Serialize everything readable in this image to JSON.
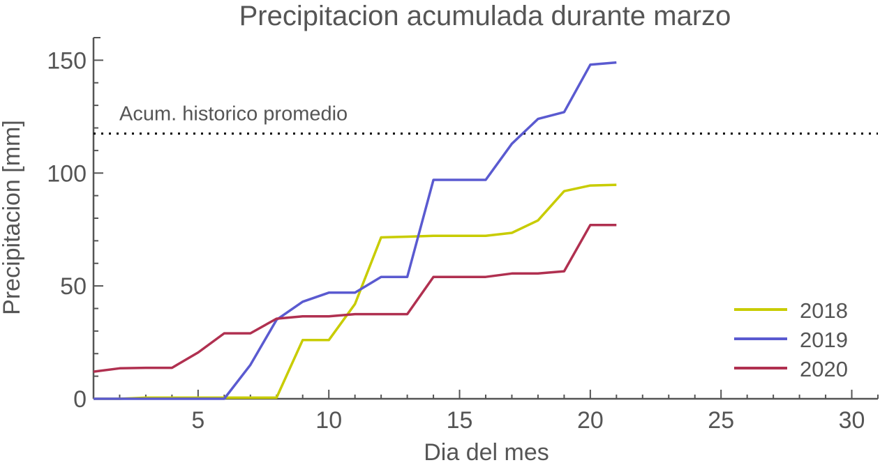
{
  "chart_data": {
    "type": "line",
    "title": "Precipitacion acumulada durante marzo",
    "xlabel": "Dia del mes",
    "ylabel": "Precipitacion [mm]",
    "xlim": [
      1,
      31
    ],
    "ylim": [
      0,
      160
    ],
    "x_ticks": [
      5,
      10,
      15,
      20,
      25,
      30
    ],
    "y_ticks": [
      0,
      50,
      100,
      150
    ],
    "grid": false,
    "legend_position": "bottom-right",
    "reference_line": {
      "label": "Acum. historico promedio",
      "y": 117.5,
      "style": "dotted",
      "color": "#000000"
    },
    "x": [
      1,
      2,
      3,
      4,
      5,
      6,
      7,
      8,
      9,
      10,
      11,
      12,
      13,
      14,
      15,
      16,
      17,
      18,
      19,
      20,
      21
    ],
    "series": [
      {
        "name": "2018",
        "color": "#c8cc00",
        "values": [
          0,
          0,
          0.5,
          0.5,
          0.5,
          0.5,
          0.5,
          0.5,
          26,
          26,
          42,
          71.5,
          71.8,
          72.2,
          72.2,
          72.2,
          73.5,
          79,
          92,
          94.5,
          94.8
        ]
      },
      {
        "name": "2019",
        "color": "#5a5ad0",
        "values": [
          0,
          0,
          0,
          0,
          0,
          0,
          15,
          35,
          43,
          47,
          47,
          54,
          54,
          97,
          97,
          97,
          113,
          124,
          127,
          148,
          149
        ]
      },
      {
        "name": "2020",
        "color": "#b03050",
        "values": [
          12,
          13.5,
          13.7,
          13.7,
          20.5,
          29,
          29,
          35.5,
          36.5,
          36.5,
          37.5,
          37.5,
          37.5,
          54,
          54,
          54,
          55.5,
          55.5,
          56.5,
          77,
          77
        ]
      }
    ]
  }
}
